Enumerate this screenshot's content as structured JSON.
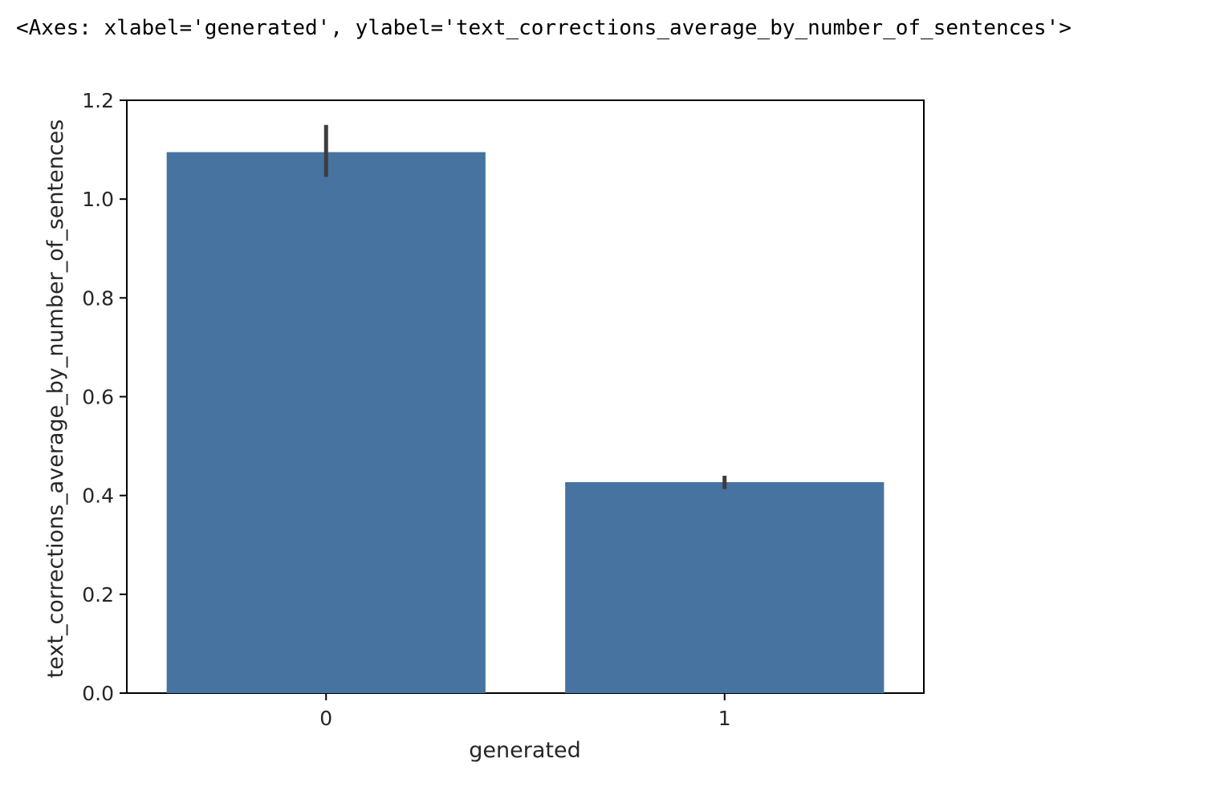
{
  "cell_output": {
    "repr_text": "<Axes: xlabel='generated', ylabel='text_corrections_average_by_number_of_sentences'>"
  },
  "chart_data": {
    "type": "bar",
    "xlabel": "generated",
    "ylabel": "text_corrections_average_by_number_of_sentences",
    "categories": [
      "0",
      "1"
    ],
    "values": [
      1.095,
      0.427
    ],
    "error_bars": [
      {
        "low": 1.045,
        "high": 1.15
      },
      {
        "low": 0.413,
        "high": 0.44
      }
    ],
    "ylim": [
      0,
      1.2
    ],
    "yticks": [
      0.0,
      0.2,
      0.4,
      0.6,
      0.8,
      1.0,
      1.2
    ],
    "ytick_labels": [
      "0.0",
      "0.2",
      "0.4",
      "0.6",
      "0.8",
      "1.0",
      "1.2"
    ],
    "bar_color": "#4673a0",
    "errorbar_color": "#3d3d3d",
    "grid": false,
    "legend": "none"
  }
}
